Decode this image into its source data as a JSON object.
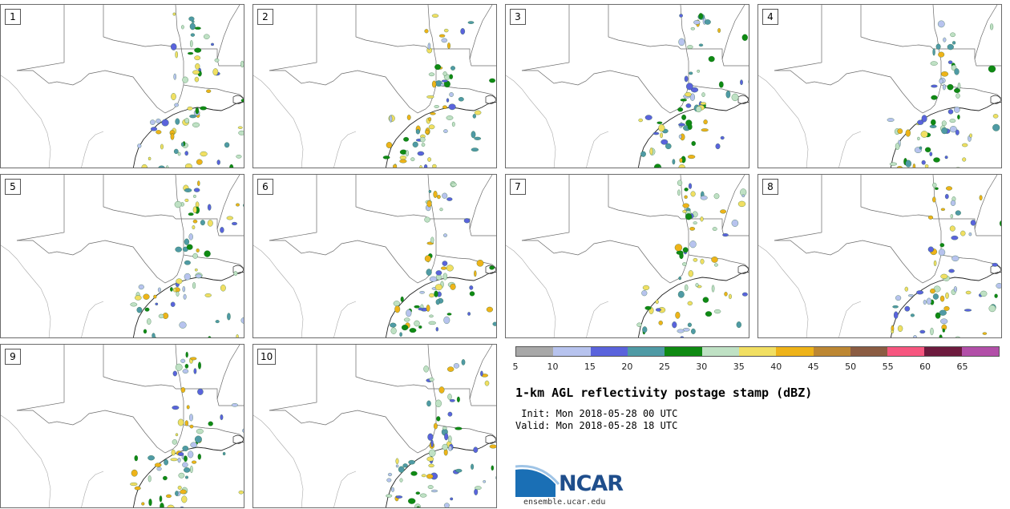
{
  "chart_data": {
    "type": "heatmap",
    "title": "1-km AGL reflectivity postage stamp (dBZ)",
    "init": " Init: Mon 2018-05-28 00 UTC",
    "valid": "Valid: Mon 2018-05-28 18 UTC",
    "members": [
      "1",
      "2",
      "3",
      "4",
      "5",
      "6",
      "7",
      "8",
      "9",
      "10"
    ],
    "colorbar": {
      "ticks": [
        "5",
        "10",
        "15",
        "20",
        "25",
        "30",
        "35",
        "40",
        "45",
        "50",
        "55",
        "60",
        "65"
      ],
      "colors": [
        "#a8a8a8",
        "#b7c3ee",
        "#5a63dc",
        "#4f9aa5",
        "#0f8a13",
        "#bfe1c4",
        "#f1df62",
        "#eeb319",
        "#bd8733",
        "#8b5c42",
        "#f6567f",
        "#6d1b3e",
        "#b24fa8"
      ]
    }
  },
  "logo": {
    "text": "NCAR",
    "site": "ensemble.ucar.edu"
  }
}
